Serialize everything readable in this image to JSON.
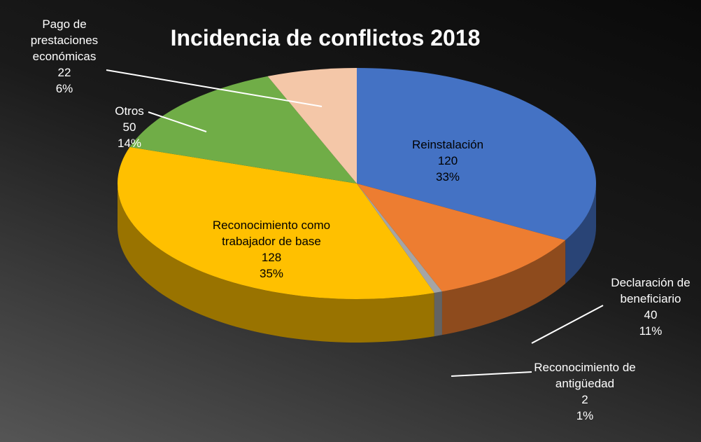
{
  "chart_data": {
    "type": "pie",
    "title": "Incidencia de conflictos 2018",
    "categories": [
      "Reinstalación",
      "Declaración de beneficiario",
      "Reconocimiento de antigüedad",
      "Reconocimiento como trabajador de base",
      "Otros",
      "Pago de prestaciones económicas"
    ],
    "values": [
      120,
      40,
      2,
      128,
      50,
      22
    ],
    "percent_labels": [
      "33%",
      "11%",
      "1%",
      "35%",
      "14%",
      "6%"
    ],
    "colors": [
      "#4472c4",
      "#ed7d31",
      "#a5a5a5",
      "#ffc000",
      "#70ad47",
      "#f4c7a8"
    ]
  }
}
